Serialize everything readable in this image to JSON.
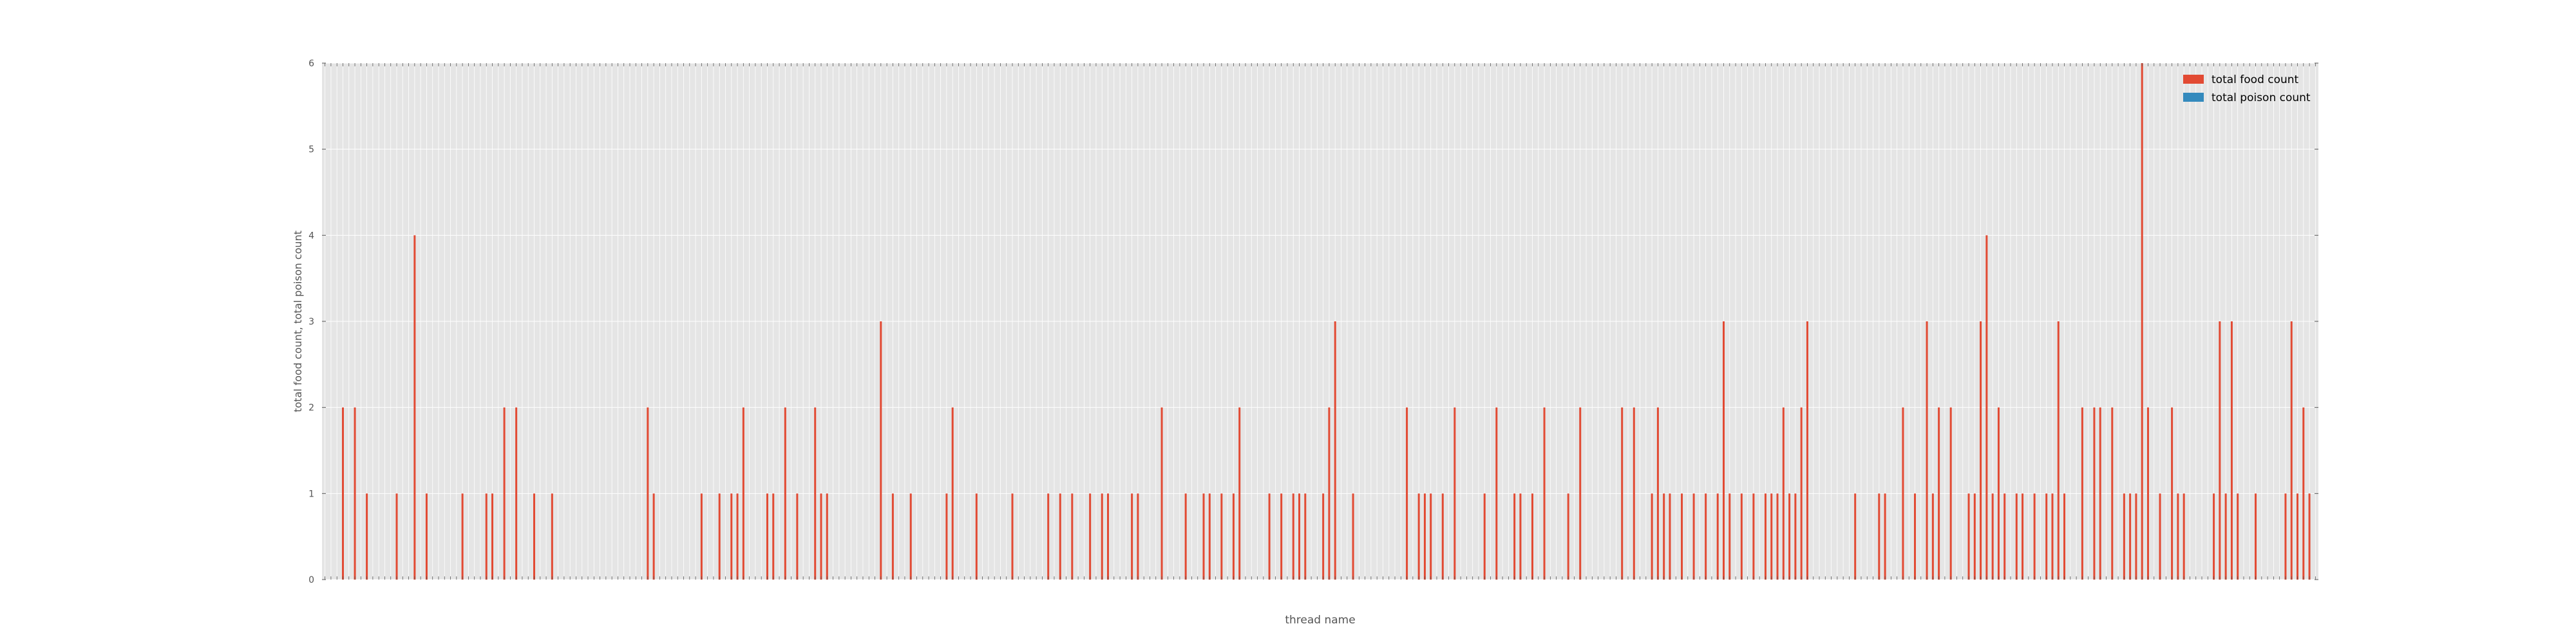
{
  "chart_data": {
    "type": "bar",
    "title": "",
    "xlabel": "thread name",
    "ylabel": "total food count, total poison count",
    "ylim": [
      0,
      6
    ],
    "yticks": [
      0,
      1,
      2,
      3,
      4,
      5,
      6
    ],
    "grid": true,
    "legend_position": "top-right",
    "n_categories": 300,
    "series": [
      {
        "name": "total food count",
        "color": "#e24a33",
        "values": [
          0,
          0,
          0,
          2,
          0,
          2,
          0,
          1,
          0,
          0,
          0,
          0,
          1,
          0,
          0,
          4,
          0,
          1,
          0,
          0,
          0,
          0,
          0,
          1,
          0,
          0,
          0,
          1,
          1,
          0,
          2,
          0,
          2,
          0,
          0,
          1,
          0,
          0,
          1,
          0,
          0,
          0,
          0,
          0,
          0,
          0,
          0,
          0,
          0,
          0,
          0,
          0,
          0,
          0,
          2,
          1,
          0,
          0,
          0,
          0,
          0,
          0,
          0,
          1,
          0,
          0,
          1,
          0,
          1,
          1,
          2,
          0,
          0,
          0,
          1,
          1,
          0,
          2,
          0,
          1,
          0,
          0,
          2,
          1,
          1,
          0,
          0,
          0,
          0,
          0,
          0,
          0,
          0,
          3,
          0,
          1,
          0,
          0,
          1,
          0,
          0,
          0,
          0,
          0,
          1,
          2,
          0,
          0,
          0,
          1,
          0,
          0,
          0,
          0,
          0,
          1,
          0,
          0,
          0,
          0,
          0,
          1,
          0,
          0,
          0,
          0,
          0,
          0,
          0,
          0,
          0,
          0,
          0,
          1,
          0,
          1,
          0,
          1,
          1,
          0,
          0,
          0,
          1,
          0,
          0,
          0,
          0,
          1,
          0,
          0,
          0,
          0,
          0,
          0,
          0,
          0,
          1,
          0,
          0,
          0,
          0,
          0,
          1,
          0,
          0,
          0,
          0,
          0,
          0,
          1,
          0,
          1,
          0,
          0,
          0,
          1,
          0,
          0,
          0,
          0,
          0,
          0,
          0,
          0,
          0,
          1,
          1,
          0,
          1,
          0,
          2,
          0,
          0,
          0,
          0,
          0,
          0,
          0,
          0,
          0,
          0,
          0,
          0,
          0,
          0,
          0,
          0,
          0,
          0,
          0,
          0,
          0,
          0,
          0,
          0,
          0,
          0,
          0,
          0,
          0,
          0,
          2,
          0,
          0,
          0,
          0,
          1,
          0,
          0,
          1,
          0,
          0,
          0,
          0,
          0,
          0,
          1,
          0,
          0,
          0,
          0,
          1,
          0,
          0,
          0,
          0,
          0,
          0,
          0,
          0,
          0,
          0,
          0,
          0,
          0,
          0,
          0,
          0,
          0,
          0,
          0,
          0,
          0,
          0,
          0,
          0,
          0,
          0,
          0,
          0,
          1,
          1,
          0,
          0,
          0,
          0,
          0,
          0,
          1,
          0,
          1,
          0,
          1,
          1,
          0,
          0,
          2,
          0,
          0,
          0,
          0,
          0,
          0,
          0,
          0,
          1,
          0,
          0,
          1
        ],
        "extra_values_right": [
          2,
          2,
          1,
          1,
          1,
          1,
          1,
          3,
          2,
          1,
          1,
          2,
          1,
          1,
          2,
          3,
          1,
          1,
          2,
          1,
          3,
          1,
          2,
          2,
          1,
          1,
          1,
          3,
          1,
          4,
          1,
          2,
          1,
          1,
          1,
          1,
          1,
          1,
          1,
          3,
          1,
          2,
          1,
          2,
          2,
          2,
          1,
          1,
          1,
          6,
          2,
          1,
          2,
          1,
          1,
          1,
          3,
          1,
          3,
          1,
          1,
          1,
          3,
          1,
          2,
          1
        ]
      },
      {
        "name": "total poison count",
        "color": "#348abd",
        "values": []
      }
    ],
    "bars": [
      [
        3,
        2
      ],
      [
        5,
        2
      ],
      [
        7,
        1
      ],
      [
        12,
        1
      ],
      [
        15,
        4
      ],
      [
        17,
        1
      ],
      [
        23,
        1
      ],
      [
        27,
        1
      ],
      [
        28,
        1
      ],
      [
        30,
        2
      ],
      [
        32,
        2
      ],
      [
        35,
        1
      ],
      [
        38,
        1
      ],
      [
        54,
        2
      ],
      [
        55,
        1
      ],
      [
        63,
        1
      ],
      [
        66,
        1
      ],
      [
        68,
        1
      ],
      [
        69,
        1
      ],
      [
        70,
        2
      ],
      [
        74,
        1
      ],
      [
        75,
        1
      ],
      [
        77,
        2
      ],
      [
        79,
        1
      ],
      [
        82,
        2
      ],
      [
        83,
        1
      ],
      [
        84,
        1
      ],
      [
        93,
        3
      ],
      [
        95,
        1
      ],
      [
        98,
        1
      ],
      [
        104,
        1
      ],
      [
        105,
        2
      ],
      [
        109,
        1
      ],
      [
        115,
        1
      ],
      [
        121,
        1
      ],
      [
        123,
        1
      ],
      [
        125,
        1
      ],
      [
        128,
        1
      ],
      [
        130,
        1
      ],
      [
        131,
        1
      ],
      [
        135,
        1
      ],
      [
        136,
        1
      ],
      [
        140,
        2
      ],
      [
        144,
        1
      ],
      [
        147,
        1
      ],
      [
        148,
        1
      ],
      [
        150,
        1
      ],
      [
        152,
        1
      ],
      [
        153,
        2
      ],
      [
        158,
        1
      ],
      [
        160,
        1
      ],
      [
        162,
        1
      ],
      [
        163,
        1
      ],
      [
        164,
        1
      ],
      [
        167,
        1
      ],
      [
        168,
        2
      ],
      [
        169,
        3
      ],
      [
        172,
        1
      ],
      [
        181,
        2
      ],
      [
        183,
        1
      ],
      [
        184,
        1
      ],
      [
        185,
        1
      ],
      [
        187,
        1
      ],
      [
        189,
        2
      ],
      [
        194,
        1
      ],
      [
        196,
        2
      ],
      [
        199,
        1
      ],
      [
        200,
        1
      ],
      [
        202,
        1
      ],
      [
        204,
        2
      ],
      [
        208,
        1
      ],
      [
        210,
        2
      ],
      [
        217,
        2
      ],
      [
        219,
        2
      ],
      [
        222,
        1
      ],
      [
        223,
        2
      ],
      [
        224,
        1
      ],
      [
        225,
        1
      ],
      [
        227,
        1
      ],
      [
        229,
        1
      ],
      [
        231,
        1
      ],
      [
        233,
        1
      ],
      [
        234,
        3
      ],
      [
        235,
        1
      ],
      [
        237,
        1
      ],
      [
        239,
        1
      ],
      [
        241,
        1
      ],
      [
        242,
        1
      ],
      [
        243,
        1
      ],
      [
        244,
        2
      ],
      [
        245,
        1
      ],
      [
        246,
        1
      ],
      [
        247,
        2
      ],
      [
        248,
        3
      ],
      [
        256,
        1
      ],
      [
        260,
        1
      ],
      [
        261,
        1
      ],
      [
        264,
        2
      ],
      [
        266,
        1
      ],
      [
        268,
        3
      ],
      [
        269,
        1
      ],
      [
        270,
        2
      ],
      [
        272,
        2
      ],
      [
        275,
        1
      ],
      [
        276,
        1
      ],
      [
        277,
        3
      ],
      [
        278,
        4
      ],
      [
        279,
        1
      ],
      [
        280,
        2
      ],
      [
        281,
        1
      ],
      [
        283,
        1
      ],
      [
        284,
        1
      ],
      [
        286,
        1
      ],
      [
        288,
        1
      ],
      [
        289,
        1
      ],
      [
        290,
        3
      ],
      [
        291,
        1
      ],
      [
        294,
        2
      ],
      [
        296,
        2
      ],
      [
        297,
        2
      ],
      [
        299,
        2
      ]
    ],
    "bars_tail": [
      [
        301,
        1
      ],
      [
        302,
        1
      ],
      [
        303,
        1
      ],
      [
        304,
        6
      ],
      [
        305,
        2
      ],
      [
        307,
        1
      ],
      [
        309,
        2
      ],
      [
        310,
        1
      ],
      [
        311,
        1
      ],
      [
        316,
        1
      ],
      [
        317,
        3
      ],
      [
        318,
        1
      ],
      [
        319,
        3
      ],
      [
        320,
        1
      ],
      [
        323,
        1
      ],
      [
        328,
        1
      ],
      [
        329,
        3
      ],
      [
        330,
        1
      ],
      [
        331,
        2
      ],
      [
        332,
        1
      ]
    ],
    "n_total": 334
  },
  "legend": {
    "food_label": "total food count",
    "poison_label": "total poison count"
  }
}
